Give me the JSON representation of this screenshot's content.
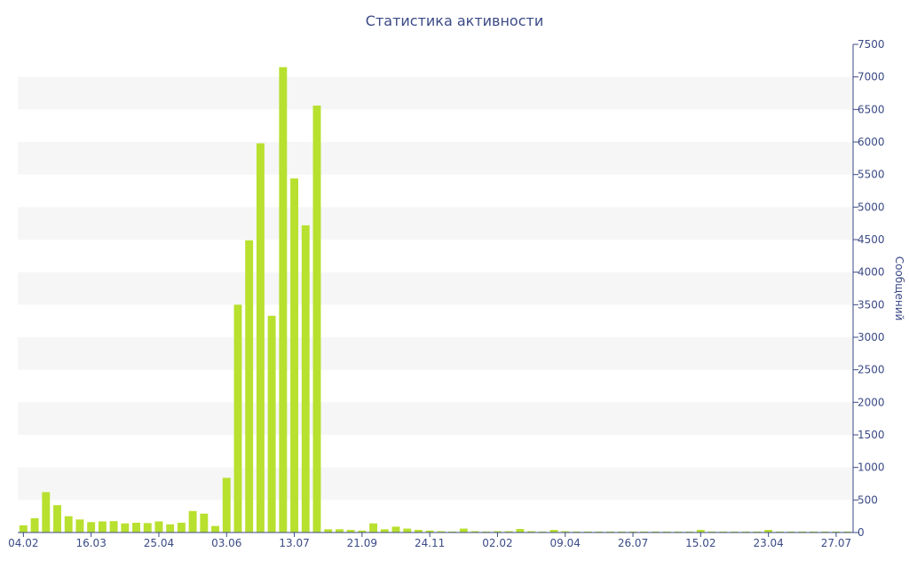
{
  "chart_data": {
    "type": "bar",
    "title": "Статистика активности",
    "ylabel": "Сообщений",
    "xlabel": "",
    "ylim": [
      0,
      7500
    ],
    "y_axis_side": "right",
    "y_ticks": [
      0,
      500,
      1000,
      1500,
      2000,
      2500,
      3000,
      3500,
      4000,
      4500,
      5000,
      5500,
      6000,
      6500,
      7000,
      7500
    ],
    "x_tick_labels": [
      "04.02",
      "16.03",
      "25.04",
      "03.06",
      "13.07",
      "21.09",
      "24.11",
      "02.02",
      "09.04",
      "26.07",
      "15.02",
      "23.04",
      "27.07"
    ],
    "x_tick_bar_index": [
      0,
      6,
      12,
      18,
      24,
      30,
      36,
      42,
      48,
      54,
      60,
      66,
      72
    ],
    "grid": "alternating horizontal bands",
    "colors": {
      "bar": "#b8e02e",
      "band": "#f6f6f6",
      "axis": "#3b4a86"
    },
    "values": [
      110,
      220,
      620,
      420,
      250,
      200,
      160,
      170,
      175,
      140,
      150,
      145,
      170,
      125,
      150,
      330,
      290,
      100,
      840,
      3500,
      4490,
      5980,
      3330,
      7150,
      5440,
      4720,
      6560,
      50,
      50,
      40,
      30,
      140,
      50,
      90,
      60,
      40,
      30,
      20,
      15,
      60,
      20,
      15,
      20,
      20,
      55,
      20,
      15,
      40,
      20,
      15,
      15,
      15,
      15,
      15,
      15,
      15,
      15,
      15,
      15,
      15,
      40,
      15,
      15,
      15,
      15,
      15,
      40,
      15,
      15,
      15,
      15,
      15,
      15,
      15
    ]
  }
}
